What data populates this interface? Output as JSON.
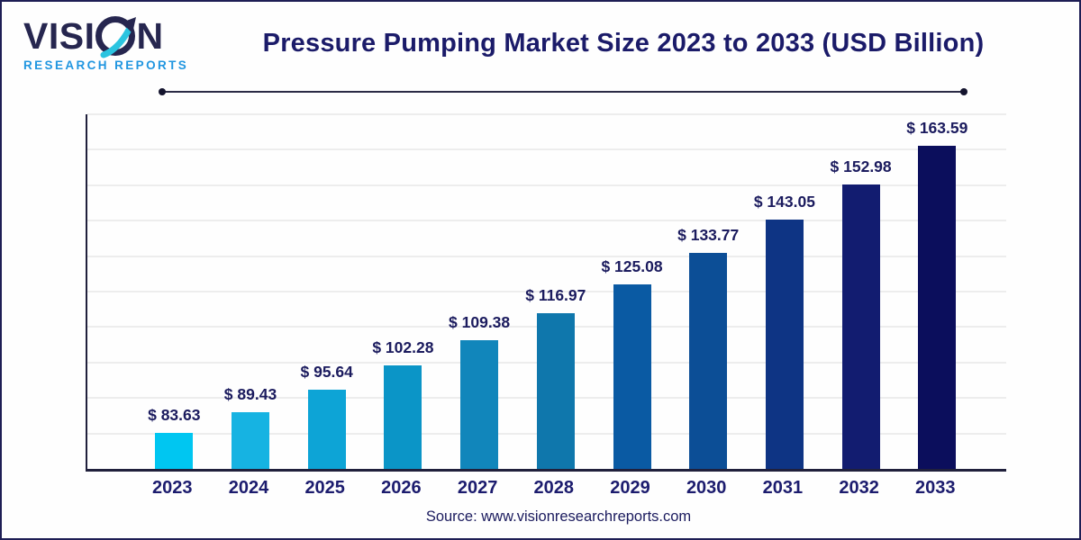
{
  "logo": {
    "brand_prefix": "VISI",
    "brand_suffix": "N",
    "subtitle": "RESEARCH REPORTS",
    "brand_color": "#26264f",
    "subtitle_color": "#2196e0",
    "arrow_color": "#2bc4e0"
  },
  "header": {
    "title": "Pressure Pumping Market Size 2023 to 2033 (USD Billion)",
    "title_color": "#1b1b69"
  },
  "chart_data": {
    "type": "bar",
    "title": "Pressure Pumping Market Size 2023 to 2033 (USD Billion)",
    "unit": "USD Billion",
    "categories": [
      "2023",
      "2024",
      "2025",
      "2026",
      "2027",
      "2028",
      "2029",
      "2030",
      "2031",
      "2032",
      "2033"
    ],
    "values": [
      83.63,
      89.43,
      95.64,
      102.28,
      109.38,
      116.97,
      125.08,
      133.77,
      143.05,
      152.98,
      163.59
    ],
    "value_labels": [
      "$ 83.63",
      "$ 89.43",
      "$ 95.64",
      "$ 102.28",
      "$ 109.38",
      "$ 116.97",
      "$ 125.08",
      "$ 133.77",
      "$ 143.05",
      "$ 152.98",
      "$ 163.59"
    ],
    "bar_colors": [
      "#00C6F1",
      "#16B3E2",
      "#0DA4D6",
      "#0B95C7",
      "#1186BB",
      "#0F77AC",
      "#0A5AA3",
      "#0C4E96",
      "#0E3484",
      "#121C70",
      "#0B0E5C"
    ],
    "label_color": "#1b1b5e",
    "x_label_color": "#1c1c6e",
    "axis_color": "#20203c",
    "grid_color": "#ededed",
    "grid": true,
    "gridline_count": 10,
    "ylim": [
      73.5,
      172.5
    ],
    "xlabel": "",
    "ylabel": "",
    "legend": "none"
  },
  "footer": {
    "source": "Source: www.visionresearchreports.com",
    "color": "#1b1b5e"
  }
}
